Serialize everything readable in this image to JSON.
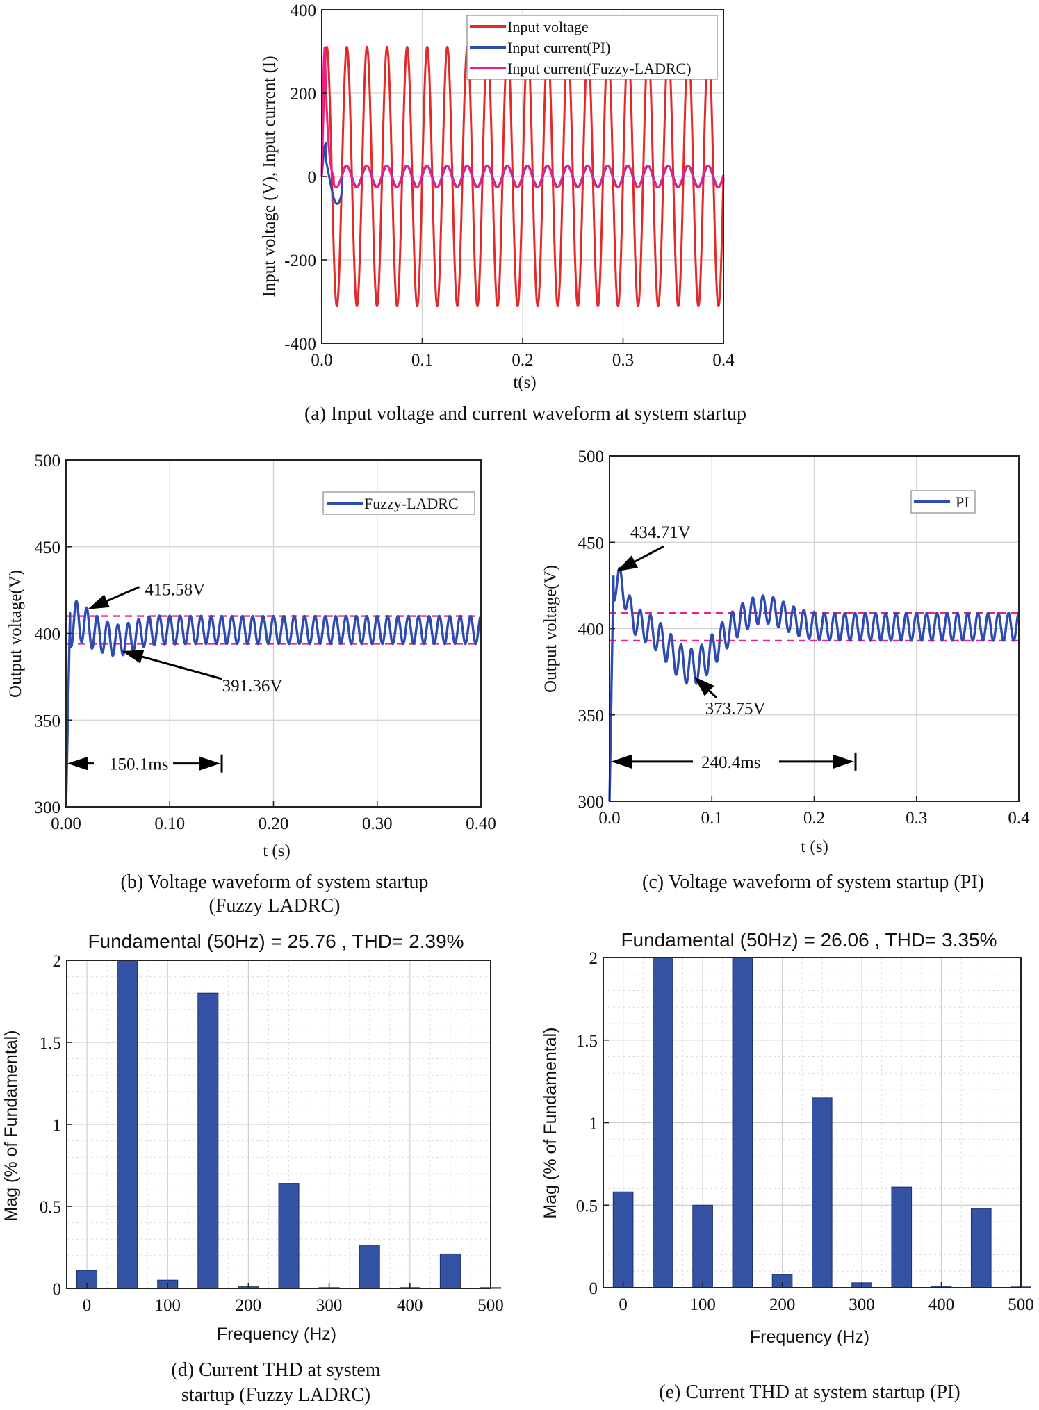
{
  "figure": {
    "colors": {
      "voltage": "#e32a2a",
      "pi": "#2e4bb0",
      "fuzzy": "#ee1f8c",
      "bar": "#3452a3",
      "dash": "#ee1f8c",
      "grid": "#d0d0d0"
    }
  },
  "chart_data": [
    {
      "id": "a",
      "type": "line",
      "caption": "(a) Input voltage and current waveform at system startup",
      "xlabel": "t(s)",
      "ylabel": "Input voltage (V), Input current (I)",
      "xlim": [
        0.0,
        0.4
      ],
      "ylim": [
        -400,
        400
      ],
      "xticks": [
        0.0,
        0.1,
        0.2,
        0.3,
        0.4
      ],
      "xtick_labels": [
        "0.0",
        "0.1",
        "0.2",
        "0.3",
        "0.4"
      ],
      "yticks": [
        -400,
        -200,
        0,
        200,
        400
      ],
      "ytick_labels": [
        "-400",
        "-200",
        "0",
        "200",
        "400"
      ],
      "series": [
        {
          "name": "Input voltage",
          "color": "#e32a2a",
          "kind": "sine",
          "amplitude": 311,
          "frequency_hz": 50
        },
        {
          "name": "Input current(PI)",
          "color": "#2e4bb0",
          "kind": "current",
          "amplitude": 25,
          "frequency_hz": 50,
          "inrush_peak": 80,
          "dip": -65
        },
        {
          "name": "Input current(Fuzzy-LADRC)",
          "color": "#ee1f8c",
          "kind": "current",
          "amplitude": 26,
          "frequency_hz": 50,
          "inrush_peak": 310,
          "dip": -30
        }
      ],
      "legend": [
        "Input voltage",
        "Input current(PI)",
        "Input current(Fuzzy-LADRC)"
      ],
      "legend_position": "top-right"
    },
    {
      "id": "b",
      "type": "line",
      "caption_line1": "(b) Voltage waveform of system startup",
      "caption_line2": "(Fuzzy LADRC)",
      "xlabel": "t (s)",
      "ylabel": "Output voltage(V)",
      "xlim": [
        0.0,
        0.4
      ],
      "ylim": [
        300,
        500
      ],
      "xticks": [
        0.0,
        0.1,
        0.2,
        0.3,
        0.4
      ],
      "xtick_labels": [
        "0.00",
        "0.10",
        "0.20",
        "0.30",
        "0.40"
      ],
      "yticks": [
        300,
        350,
        400,
        450,
        500
      ],
      "ytick_labels": [
        "300",
        "350",
        "400",
        "450",
        "500"
      ],
      "series": [
        {
          "name": "Fuzzy-LADRC",
          "color": "#2e4bb0",
          "steady": 402,
          "ripple": 8,
          "overshoot": 415.58,
          "undershoot": 391.36
        }
      ],
      "band": [
        394,
        410
      ],
      "legend": [
        "Fuzzy-LADRC"
      ],
      "legend_position": "top-right",
      "annotations": {
        "peak_label": "415.58V",
        "peak_t": 0.017,
        "peak_v": 415.58,
        "dip_label": "391.36V",
        "dip_t": 0.05,
        "dip_v": 391.36,
        "settle_label": "150.1ms",
        "settle_t": 0.1501,
        "settle_v": 325
      }
    },
    {
      "id": "c",
      "type": "line",
      "caption": "(c) Voltage waveform of system startup (PI)",
      "xlabel": "t (s)",
      "ylabel": "Output voltage(V)",
      "xlim": [
        0.0,
        0.4
      ],
      "ylim": [
        300,
        500
      ],
      "xticks": [
        0.0,
        0.1,
        0.2,
        0.3,
        0.4
      ],
      "xtick_labels": [
        "0.0",
        "0.1",
        "0.2",
        "0.3",
        "0.4"
      ],
      "yticks": [
        300,
        350,
        400,
        450,
        500
      ],
      "ytick_labels": [
        "300",
        "350",
        "400",
        "450",
        "500"
      ],
      "series": [
        {
          "name": "PI",
          "color": "#2e4bb0",
          "steady": 401,
          "ripple": 8,
          "overshoot": 434.71,
          "undershoot": 373.75
        }
      ],
      "band": [
        393,
        409
      ],
      "legend": [
        "PI"
      ],
      "legend_position": "top-right",
      "annotations": {
        "peak_label": "434.71V",
        "peak_t": 0.004,
        "peak_v": 434.71,
        "dip_label": "373.75V",
        "dip_t": 0.08,
        "dip_v": 373.75,
        "settle_label": "240.4ms",
        "settle_t": 0.2404,
        "settle_v": 323
      }
    },
    {
      "id": "d",
      "type": "bar",
      "title": "Fundamental (50Hz) = 25.76 , THD= 2.39%",
      "caption_line1": "(d) Current THD at system",
      "caption_line2": "startup (Fuzzy LADRC)",
      "xlabel": "Frequency (Hz)",
      "ylabel": "Mag (% of Fundamental)",
      "xlim": [
        -25,
        500
      ],
      "ylim": [
        0,
        2
      ],
      "xticks": [
        0,
        100,
        200,
        300,
        400,
        500
      ],
      "xtick_labels": [
        "0",
        "100",
        "200",
        "300",
        "400",
        "500"
      ],
      "yticks": [
        0,
        0.5,
        1,
        1.5,
        2
      ],
      "ytick_labels": [
        "0",
        "0.5",
        "1",
        "1.5",
        "2"
      ],
      "x": [
        0,
        50,
        100,
        150,
        200,
        250,
        300,
        350,
        400,
        450,
        500
      ],
      "values": [
        0.11,
        2.0,
        0.05,
        1.8,
        0.01,
        0.64,
        0.005,
        0.26,
        0.005,
        0.21,
        0.005
      ]
    },
    {
      "id": "e",
      "type": "bar",
      "title": "Fundamental (50Hz) = 26.06 , THD= 3.35%",
      "caption": "(e) Current THD at system startup (PI)",
      "xlabel": "Frequency (Hz)",
      "ylabel": "Mag (% of Fundamental)",
      "xlim": [
        -25,
        500
      ],
      "ylim": [
        0,
        2
      ],
      "xticks": [
        0,
        100,
        200,
        300,
        400,
        500
      ],
      "xtick_labels": [
        "0",
        "100",
        "200",
        "300",
        "400",
        "500"
      ],
      "yticks": [
        0,
        0.5,
        1,
        1.5,
        2
      ],
      "ytick_labels": [
        "0",
        "0.5",
        "1",
        "1.5",
        "2"
      ],
      "x": [
        0,
        50,
        100,
        150,
        200,
        250,
        300,
        350,
        400,
        450,
        500
      ],
      "values": [
        0.58,
        2.0,
        0.5,
        2.0,
        0.08,
        1.15,
        0.03,
        0.61,
        0.01,
        0.48,
        0.005
      ]
    }
  ]
}
